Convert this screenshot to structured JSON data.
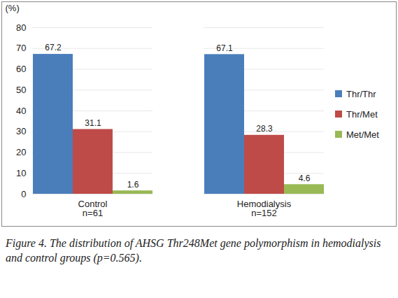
{
  "chart_data": {
    "type": "bar",
    "caption": "Figure 4. The distribution of AHSG Thr248Met gene polymorphism in hemodialysis and control groups (p=0.565).",
    "y_label": "(%)",
    "categories": [
      "Control\nn=61",
      "Hemodialysis\nn=152"
    ],
    "series": [
      {
        "name": "Thr/Thr",
        "color": "#4a7ebb",
        "values": [
          67.2,
          67.1
        ]
      },
      {
        "name": "Thr/Met",
        "color": "#be4b48",
        "values": [
          31.1,
          28.3
        ]
      },
      {
        "name": "Met/Met",
        "color": "#98b954",
        "values": [
          1.6,
          4.6
        ]
      }
    ],
    "ylim": [
      0,
      80
    ],
    "yticks": [
      0,
      10,
      20,
      30,
      40,
      50,
      60,
      70,
      80
    ],
    "grid": true,
    "legend": "right",
    "data_labels": true
  }
}
